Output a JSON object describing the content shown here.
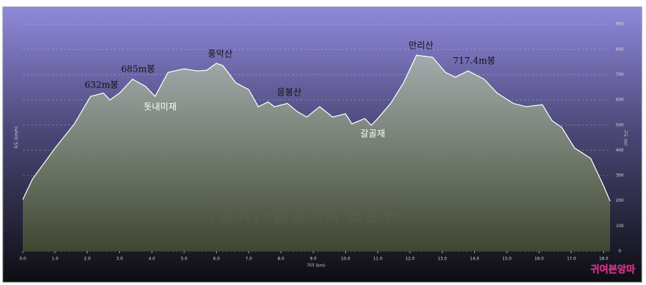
{
  "chart_data": {
    "type": "area",
    "watermark": "[봉화] -갈골계곡 환종주-",
    "x_label": "거리 (km)",
    "y_label": "속도 (km/h)",
    "y2_label": "고도 (m)",
    "logo": "귀여븐앙마",
    "x": [
      0.0,
      0.3,
      1.0,
      1.6,
      2.1,
      2.5,
      2.7,
      3.0,
      3.4,
      3.8,
      4.1,
      4.5,
      5.0,
      5.4,
      5.7,
      6.0,
      6.2,
      6.6,
      7.0,
      7.3,
      7.6,
      7.8,
      8.2,
      8.5,
      8.8,
      9.2,
      9.6,
      10.0,
      10.2,
      10.6,
      10.8,
      11.0,
      11.4,
      11.8,
      12.2,
      12.7,
      13.1,
      13.4,
      13.8,
      14.3,
      14.7,
      15.2,
      15.6,
      16.1,
      16.4,
      16.7,
      17.1,
      17.6,
      18.0,
      18.2
    ],
    "series": [
      {
        "name": "고도",
        "color": "#ffffff",
        "values": [
          205,
          286,
          409,
          505,
          614,
          627,
          600,
          627,
          682,
          654,
          614,
          709,
          723,
          715,
          717,
          745,
          736,
          668,
          641,
          573,
          592,
          573,
          586,
          554,
          532,
          573,
          532,
          545,
          505,
          526,
          499,
          526,
          586,
          668,
          777,
          769,
          709,
          690,
          715,
          682,
          627,
          586,
          573,
          581,
          518,
          491,
          409,
          368,
          259,
          199
        ]
      }
    ],
    "annotations": [
      "632m봉",
      "685m봉",
      "돗내미재",
      "풍악산",
      "응봉산",
      "갈골재",
      "만리산",
      "717.4m봉"
    ],
    "xlim": [
      0,
      18.2
    ],
    "ylim": [
      0,
      955
    ],
    "xticks": [
      {
        "value": 0,
        "label": "0.0"
      },
      {
        "value": 1,
        "label": "1.0"
      },
      {
        "value": 2,
        "label": "2.0"
      },
      {
        "value": 3,
        "label": "3.0"
      },
      {
        "value": 4,
        "label": "4.0"
      },
      {
        "value": 5,
        "label": "5.0"
      },
      {
        "value": 6,
        "label": "6.0"
      },
      {
        "value": 7,
        "label": "7.0"
      },
      {
        "value": 8,
        "label": "8.0"
      },
      {
        "value": 9,
        "label": "9.0"
      },
      {
        "value": 10,
        "label": "10.0"
      },
      {
        "value": 11,
        "label": "11.0"
      },
      {
        "value": 12,
        "label": "12.0"
      },
      {
        "value": 13,
        "label": "13.0"
      },
      {
        "value": 14,
        "label": "14.0"
      },
      {
        "value": 15,
        "label": "15.0"
      },
      {
        "value": 16,
        "label": "16.0"
      },
      {
        "value": 17,
        "label": "17.0"
      },
      {
        "value": 18,
        "label": "18.0"
      }
    ],
    "yticks": [
      0,
      100,
      200,
      300,
      400,
      500,
      600,
      700,
      800,
      900
    ],
    "grid": true
  }
}
